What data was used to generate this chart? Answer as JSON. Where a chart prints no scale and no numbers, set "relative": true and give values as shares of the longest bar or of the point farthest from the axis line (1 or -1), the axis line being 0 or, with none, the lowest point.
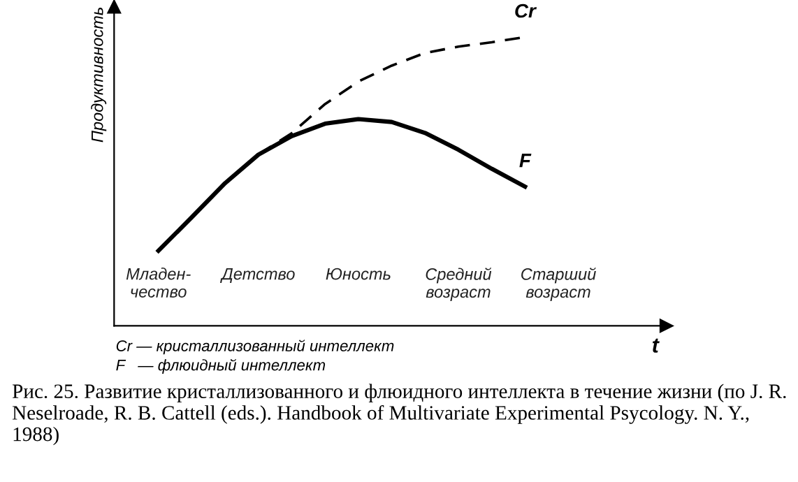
{
  "chart_data": {
    "type": "line",
    "relative": true,
    "xlabel": "t",
    "ylabel": "Продуктивность",
    "categories": [
      null,
      "Младен-\nчество",
      null,
      null,
      "Детство",
      null,
      null,
      "Юность",
      null,
      null,
      "Средний\nвозраст",
      null,
      null,
      "Старший\nвозраст"
    ],
    "grid": false,
    "legend": false,
    "marker": "none",
    "series": [
      {
        "name": "Cr",
        "color": "#000000",
        "line_style": "dashed",
        "values": [
          null,
          null,
          null,
          null,
          0.593,
          0.667,
          0.768,
          0.846,
          0.901,
          0.945,
          0.967,
          0.982,
          1.0,
          null
        ]
      },
      {
        "name": "F",
        "color": "#000000",
        "line_style": "solid",
        "values": [
          null,
          0.26,
          0.376,
          0.494,
          0.593,
          0.657,
          0.7,
          0.716,
          0.706,
          0.668,
          0.61,
          0.544,
          0.482,
          null
        ]
      }
    ],
    "annotations": [
      "Cr — кристаллизованный интеллект",
      "F   — флюидный интеллект",
      "Рис. 25. Развитие кристаллизованного и флюидного интеллекта в течение жизни (по J. R. Neselroade, R. B. Cattell (eds.). Handbook of Multivariate Experimental Psycology. N. Y., 1988)"
    ]
  }
}
